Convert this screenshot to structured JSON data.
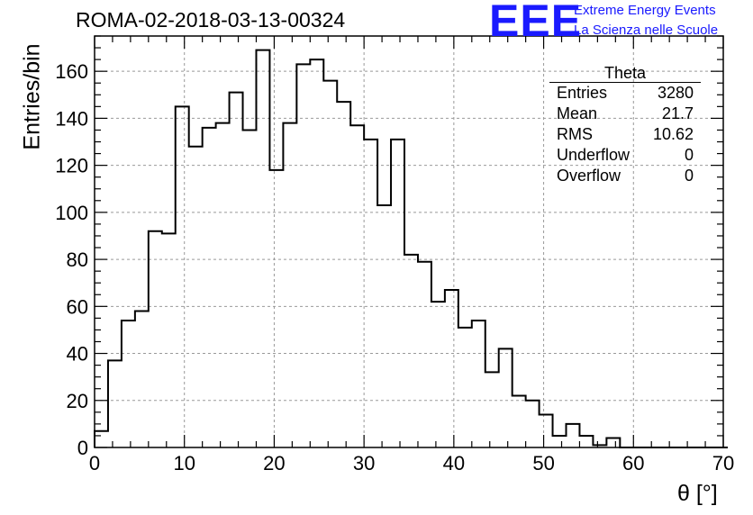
{
  "title": "ROMA-02-2018-03-13-00324",
  "logo": {
    "text": "EEE",
    "line1": "Extreme Energy Events",
    "line2": "La Scienza nelle Scuole",
    "color": "#1a1aff"
  },
  "stats": {
    "title": "Theta",
    "rows": [
      {
        "label": "Entries",
        "value": "3280"
      },
      {
        "label": "Mean",
        "value": "21.7"
      },
      {
        "label": "RMS",
        "value": "10.62"
      },
      {
        "label": "Underflow",
        "value": "0"
      },
      {
        "label": "Overflow",
        "value": "0"
      }
    ]
  },
  "chart_data": {
    "type": "bar",
    "title": "ROMA-02-2018-03-13-00324",
    "xlabel": "θ [°]",
    "ylabel": "Entries/bin",
    "xlim": [
      0,
      70
    ],
    "ylim": [
      0,
      175
    ],
    "grid": true,
    "bin_width": 1.5,
    "xticks": [
      0,
      10,
      20,
      30,
      40,
      50,
      60,
      70
    ],
    "yticks": [
      0,
      20,
      40,
      60,
      80,
      100,
      120,
      140,
      160
    ],
    "values": [
      7,
      37,
      54,
      58,
      92,
      91,
      145,
      128,
      136,
      138,
      151,
      135,
      169,
      118,
      138,
      163,
      165,
      156,
      147,
      137,
      131,
      103,
      131,
      82,
      79,
      62,
      67,
      51,
      54,
      32,
      42,
      22,
      20,
      14,
      5,
      10,
      5,
      1,
      4,
      0,
      0,
      0,
      0,
      0,
      0,
      0,
      0
    ]
  }
}
